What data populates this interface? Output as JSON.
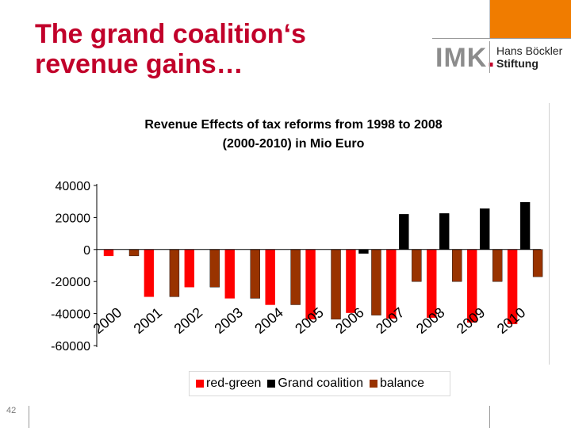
{
  "slide": {
    "title_line1": "The grand coalition‘s",
    "title_line2": "revenue gains…",
    "page_number": "42",
    "accent_color": "#c1002a",
    "orange_color": "#f07c00"
  },
  "logo": {
    "imk_text": "IMK",
    "imk_dot": ".",
    "hb_line1": "Hans Böckler",
    "hb_line2": "Stiftung"
  },
  "chart_data": {
    "type": "bar",
    "title_line1": "Revenue Effects of tax reforms from 1998 to 2008",
    "title_line2": "(2000-2010) in Mio Euro",
    "categories": [
      "2000",
      "2001",
      "2002",
      "2003",
      "2004",
      "2005",
      "2006",
      "2007",
      "2008",
      "2009",
      "2010"
    ],
    "series": [
      {
        "name": "red-green",
        "color": "#ff0000",
        "values": [
          -4000,
          -29500,
          -23500,
          -30500,
          -34500,
          -43500,
          -39500,
          -43000,
          -42500,
          -45500,
          -46500
        ]
      },
      {
        "name": "Grand coalition",
        "color": "#000000",
        "values": [
          null,
          null,
          null,
          null,
          null,
          null,
          -2500,
          22000,
          22500,
          25500,
          29500
        ]
      },
      {
        "name": "balance",
        "color": "#993300",
        "values": [
          -4000,
          -29500,
          -23500,
          -30500,
          -34500,
          -43500,
          -41000,
          -20000,
          -20000,
          -20000,
          -17000
        ]
      }
    ],
    "y_ticks": [
      40000,
      20000,
      0,
      -20000,
      -40000,
      -60000
    ],
    "y_tick_labels": [
      "40000",
      "20000",
      "0",
      "-20000",
      "-40000",
      "-60000"
    ],
    "ylim": [
      -60000,
      40000
    ],
    "xlabel": "",
    "ylabel": "",
    "legend": [
      "red-green",
      "Grand coalition",
      "balance"
    ],
    "legend_placement": "bottom",
    "grid": false
  }
}
